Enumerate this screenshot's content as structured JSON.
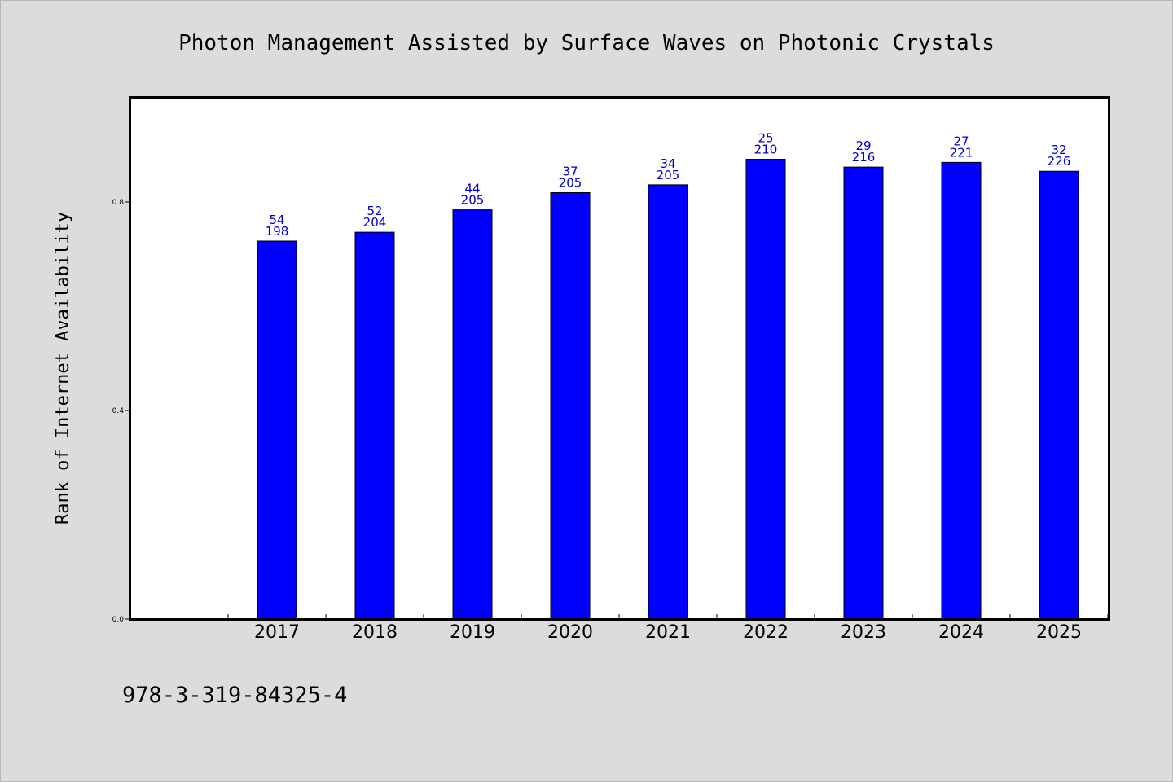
{
  "chart_data": {
    "type": "bar",
    "title": "Photon Management Assisted by Surface Waves on Photonic Crystals",
    "ylabel": "Rank of Internet Availability",
    "xlabel": "",
    "categories": [
      "2017",
      "2018",
      "2019",
      "2020",
      "2021",
      "2022",
      "2023",
      "2024",
      "2025"
    ],
    "values": [
      0.725,
      0.742,
      0.785,
      0.818,
      0.833,
      0.882,
      0.867,
      0.876,
      0.859
    ],
    "label_top": [
      "54",
      "52",
      "44",
      "37",
      "34",
      "25",
      "29",
      "27",
      "32"
    ],
    "label_bottom": [
      "198",
      "204",
      "205",
      "205",
      "205",
      "210",
      "216",
      "221",
      "226"
    ],
    "ylim": [
      0,
      1.0
    ],
    "yticks": [
      "0.0",
      "0.4",
      "0.8"
    ],
    "ytick_values": [
      0.0,
      0.4,
      0.8
    ],
    "grid": false,
    "bar_color": "#0000ff",
    "label_color": "#0000cc",
    "plot_background": "#ffffff",
    "page_background": "#dcdcdc"
  },
  "footer": {
    "isbn": "978-3-319-84325-4"
  }
}
